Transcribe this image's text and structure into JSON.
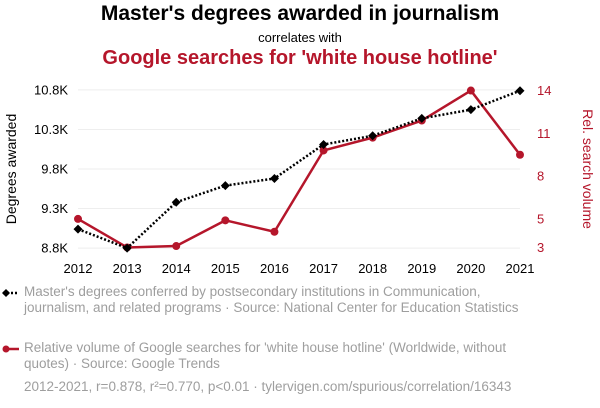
{
  "header": {
    "title": "Master's degrees awarded in journalism",
    "correlates": "correlates with",
    "title2": "Google searches for 'white house hotline'"
  },
  "colors": {
    "series1": "#000000",
    "series2": "#b5162b",
    "muted": "#9e9e9e"
  },
  "chart_data": {
    "type": "line",
    "x": [
      2012,
      2013,
      2014,
      2015,
      2016,
      2017,
      2018,
      2019,
      2020,
      2021
    ],
    "x_tick_labels": [
      "2012",
      "2013",
      "2014",
      "2015",
      "2016",
      "2017",
      "2018",
      "2019",
      "2020",
      "2021"
    ],
    "ylabel_left": "Degrees awarded",
    "ylabel_right": "Rel. search volume",
    "ylim_left": [
      8700,
      10900
    ],
    "ylim_right": [
      2.4,
      14.6
    ],
    "yticks_left": [
      8800,
      9300,
      9800,
      10300,
      10800
    ],
    "yticks_left_labels": [
      "8.8K",
      "9.3K",
      "9.8K",
      "10.3K",
      "10.8K"
    ],
    "yticks_right": [
      3,
      5,
      8,
      11,
      14
    ],
    "yticks_right_labels": [
      "3",
      "5",
      "8",
      "11",
      "14"
    ],
    "grid": true,
    "series": [
      {
        "axis": "left",
        "style": "dotted-diamond",
        "color": "#000000",
        "values": [
          9040,
          8800,
          9380,
          9590,
          9680,
          10110,
          10220,
          10440,
          10550,
          10790
        ]
      },
      {
        "axis": "right",
        "style": "solid-circle",
        "color": "#b5162b",
        "values": [
          5,
          3,
          3.1,
          4.9,
          4.1,
          9.8,
          10.7,
          11.9,
          14,
          9.5
        ]
      }
    ]
  },
  "legend": {
    "item1": "Master's degrees conferred by postsecondary institutions in Communication, journalism, and related programs · Source: National Center for Education Statistics",
    "item2": "Relative volume of Google searches for 'white house hotline' (Worldwide, without quotes) · Source: Google Trends"
  },
  "footer": "2012-2021, r=0.878, r²=0.770, p<0.01 · tylervigen.com/spurious/correlation/16343"
}
